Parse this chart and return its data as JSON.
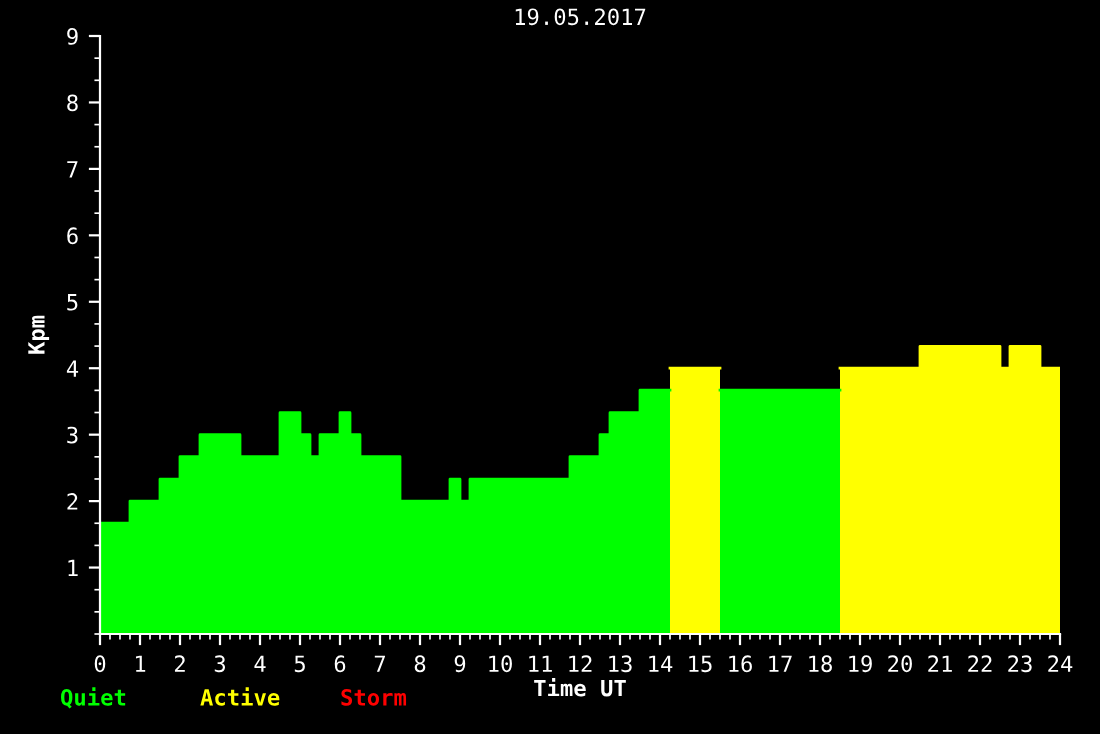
{
  "chart_data": {
    "type": "area",
    "title": "19.05.2017",
    "xlabel": "Time UT",
    "ylabel": "Kpm",
    "series": [
      {
        "name": "Quiet",
        "color": "#00ff00",
        "x": [
          0,
          0.75,
          0.75,
          1.5,
          1.5,
          2,
          2,
          2.5,
          2.5,
          3.5,
          3.5,
          4.5,
          4.5,
          5,
          5,
          5.25,
          5.25,
          5.5,
          5.5,
          6,
          6,
          6.25,
          6.25,
          6.5,
          6.5,
          7.5,
          7.5,
          8.75,
          8.75,
          9,
          9,
          9.25,
          9.25,
          11.75,
          11.75,
          12.5,
          12.5,
          12.75,
          12.75,
          13.5,
          13.5,
          14.25,
          15,
          15.5,
          18.5
        ],
        "values": [
          1.67,
          1.67,
          2.0,
          2.0,
          2.33,
          2.33,
          2.67,
          2.67,
          3.0,
          3.0,
          2.67,
          2.67,
          3.33,
          3.33,
          3.0,
          3.0,
          2.67,
          2.67,
          3.0,
          3.0,
          3.33,
          3.33,
          3.0,
          3.0,
          2.67,
          2.67,
          2.0,
          2.0,
          2.33,
          2.33,
          2.0,
          2.0,
          2.33,
          2.33,
          2.67,
          2.67,
          3.0,
          3.0,
          3.33,
          3.33,
          3.67,
          3.67,
          null,
          3.67,
          3.67
        ]
      },
      {
        "name": "Active",
        "color": "#ffff00",
        "x": [
          14.25,
          15.5,
          17,
          18.5,
          20.5,
          20.5,
          22.5,
          22.5,
          22.75,
          22.75,
          23.5,
          23.5,
          24
        ],
        "values": [
          4.0,
          4.0,
          null,
          4.0,
          4.0,
          4.33,
          4.33,
          4.0,
          4.0,
          4.33,
          4.33,
          4.0,
          4.0
        ]
      },
      {
        "name": "Storm",
        "color": "#ff0000"
      }
    ],
    "xlim": [
      0,
      24
    ],
    "xticks": [
      0,
      1,
      2,
      3,
      4,
      5,
      6,
      7,
      8,
      9,
      10,
      11,
      12,
      13,
      14,
      15,
      16,
      17,
      18,
      19,
      20,
      21,
      22,
      23,
      24
    ],
    "ylim": [
      0,
      9
    ],
    "yticks": [
      1,
      2,
      3,
      4,
      5,
      6,
      7,
      8,
      9
    ],
    "grid": false
  }
}
